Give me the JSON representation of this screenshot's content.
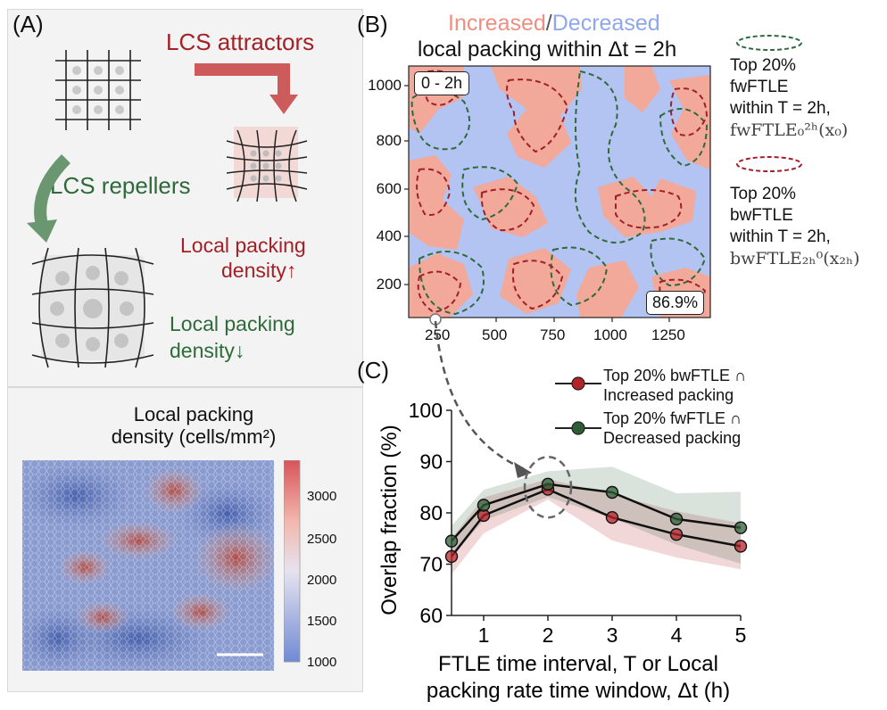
{
  "panel_a": {
    "label": "(A)",
    "lcs_attractors": "LCS attractors",
    "lcs_repellers": "LCS repellers",
    "local_packing_up": "Local packing",
    "density_up": "density↑",
    "local_packing_down": "Local packing",
    "density_down": "density↓",
    "map_title_1": "Local packing",
    "map_title_2": "density (cells/mm²)",
    "colorbar_ticks": [
      "3000",
      "2500",
      "2000",
      "1500",
      "1000"
    ]
  },
  "panel_b": {
    "label": "(B)",
    "title_increased": "Increased",
    "title_slash": "/",
    "title_decreased": "Decreased",
    "subtitle": "local packing within Δt = 2h",
    "time_box": "0 - 2h",
    "percent_box": "86.9%",
    "x_ticks": [
      "250",
      "500",
      "750",
      "1000",
      "1250"
    ],
    "y_ticks": [
      "1000",
      "800",
      "600",
      "400",
      "200"
    ],
    "legend_fw": [
      "Top 20%",
      "fwFTLE",
      "within T = 2h,",
      "fwFTLE₀²ʰ(x₀)"
    ],
    "legend_bw": [
      "Top 20%",
      "bwFTLE",
      "within T = 2h,",
      "bwFTLE₂ₕ⁰(x₂ₕ)"
    ],
    "colors": {
      "increased": "#f2a99a",
      "decreased": "#b3c3f2",
      "fw_line": "#2f6b3a",
      "bw_line": "#a0202a"
    }
  },
  "panel_c": {
    "label": "(C)",
    "legend": [
      {
        "line1": "Top 20% bwFTLE ∩",
        "line2": "Increased packing"
      },
      {
        "line1": "Top 20% fwFTLE ∩",
        "line2": "Decreased packing"
      }
    ]
  },
  "chart_data": {
    "type": "line",
    "x": [
      0.5,
      1,
      2,
      3,
      4,
      5
    ],
    "series": [
      {
        "name": "Top 20% bwFTLE ∩ Increased packing",
        "values": [
          71.5,
          79.5,
          84.6,
          79.1,
          75.8,
          73.5
        ],
        "color": "#b5232a"
      },
      {
        "name": "Top 20% fwFTLE ∩ Decreased packing",
        "values": [
          74.5,
          81.5,
          85.6,
          84.0,
          78.8,
          77.1
        ],
        "color": "#2f5d35"
      }
    ],
    "xlabel_line1": "FTLE time interval, T or Local",
    "xlabel_line2": "packing rate time window, Δt (h)",
    "ylabel": "Overlap fraction (%)",
    "x_ticks": [
      "1",
      "2",
      "3",
      "4",
      "5"
    ],
    "y_ticks": [
      "60",
      "70",
      "80",
      "90",
      "100"
    ],
    "ylim": [
      60,
      100
    ],
    "xlim": [
      0.5,
      5
    ]
  }
}
